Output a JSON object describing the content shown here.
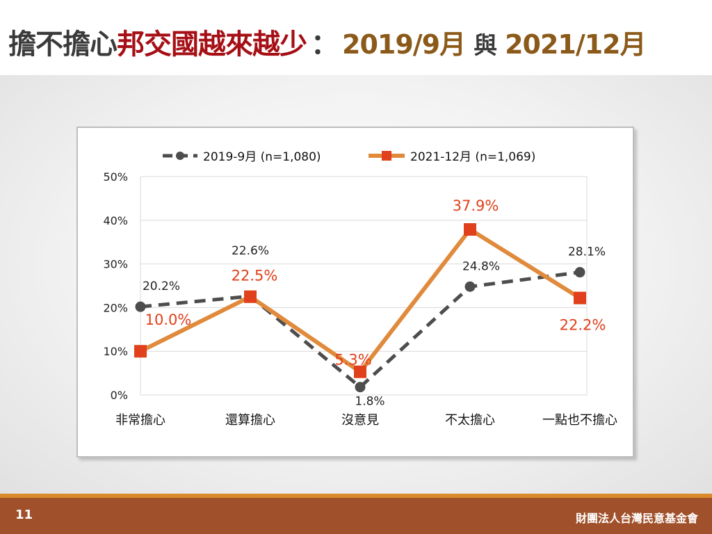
{
  "title": {
    "part1": "擔不擔心",
    "part2": "邦交國越來越少",
    "colon": "：",
    "date1": "2019/9月",
    "mid": "與",
    "date2": "2021/12月"
  },
  "footer": {
    "page_number": "11",
    "organization": "財團法人台灣民意基金會"
  },
  "colors": {
    "series_2019": "#4d4d4d",
    "series_2021_line": "#e08a3c",
    "series_2021_marker": "#e0401b",
    "series_2021_label": "#e0401b",
    "footer_bg": "#a0502a",
    "footer_line": "#d98a2b"
  },
  "chart_data": {
    "type": "line",
    "categories": [
      "非常擔心",
      "還算擔心",
      "沒意見",
      "不太擔心",
      "一點也不擔心"
    ],
    "series": [
      {
        "name": "2019-9月  (n=1,080)",
        "values": [
          20.2,
          22.6,
          1.8,
          24.8,
          28.1
        ],
        "labels": [
          "20.2%",
          "22.6%",
          "1.8%",
          "24.8%",
          "28.1%"
        ],
        "style": "dashed",
        "marker": "circle"
      },
      {
        "name": "2021-12月  (n=1,069)",
        "values": [
          10.0,
          22.5,
          5.3,
          37.9,
          22.2
        ],
        "labels": [
          "10.0%",
          "22.5%",
          "5.3%",
          "37.9%",
          "22.2%"
        ],
        "style": "solid",
        "marker": "square"
      }
    ],
    "y_ticks": [
      "0%",
      "10%",
      "20%",
      "30%",
      "40%",
      "50%"
    ],
    "ylim": [
      0,
      50
    ],
    "grid": true,
    "legend": "top"
  }
}
